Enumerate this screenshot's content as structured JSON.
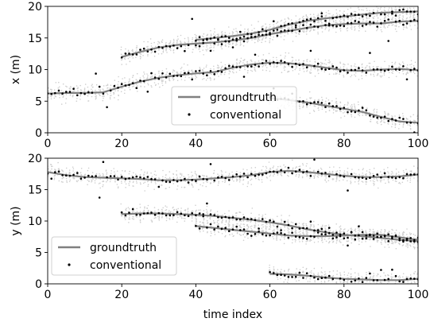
{
  "chart_data": [
    {
      "type": "line",
      "xlabel": "",
      "ylabel": "x (m)",
      "xlim": [
        0,
        100
      ],
      "ylim": [
        0,
        20
      ],
      "xticks": [
        0,
        20,
        40,
        60,
        80,
        100
      ],
      "yticks": [
        0,
        5,
        10,
        15,
        20
      ],
      "grid": false,
      "legend": {
        "placement": "lower-center",
        "entries": [
          "groundtruth",
          "conventional"
        ]
      },
      "series": [
        {
          "name": "groundtruth",
          "style": "line",
          "color": "#808080",
          "tracks": [
            {
              "x": [
                0,
                5,
                10,
                15,
                20,
                25,
                30,
                35,
                40,
                45,
                50,
                55,
                60,
                65,
                70,
                75,
                80,
                85,
                90,
                95,
                100
              ],
              "y": [
                6.2,
                6.3,
                6.3,
                6.4,
                7.3,
                8.1,
                8.7,
                9.1,
                9.4,
                9.6,
                10.3,
                10.8,
                11.1,
                11.0,
                10.7,
                10.3,
                9.9,
                9.8,
                10.0,
                10.1,
                9.9
              ]
            },
            {
              "x": [
                20,
                25,
                30,
                35,
                40,
                45,
                50,
                55,
                60,
                65,
                70,
                75,
                80,
                85,
                90,
                95,
                100
              ],
              "y": [
                12.0,
                12.8,
                13.5,
                13.9,
                14.1,
                14.3,
                14.6,
                15.0,
                15.6,
                16.1,
                16.6,
                17.0,
                17.2,
                17.3,
                17.3,
                17.6,
                17.7
              ]
            },
            {
              "x": [
                40,
                45,
                50,
                55,
                60,
                65,
                70,
                75,
                80,
                85,
                90,
                95,
                100
              ],
              "y": [
                14.7,
                15.0,
                15.3,
                15.7,
                16.3,
                17.1,
                17.7,
                18.1,
                18.4,
                18.7,
                19.0,
                19.1,
                19.2
              ]
            },
            {
              "x": [
                60,
                65,
                70,
                75,
                80,
                85,
                90,
                95,
                100
              ],
              "y": [
                5.5,
                5.2,
                4.8,
                4.3,
                3.8,
                3.3,
                2.5,
                1.8,
                1.6
              ]
            }
          ]
        },
        {
          "name": "conventional",
          "style": "points",
          "color": "#000000"
        }
      ]
    },
    {
      "type": "line",
      "xlabel": "time index",
      "ylabel": "y (m)",
      "xlim": [
        0,
        100
      ],
      "ylim": [
        0,
        20
      ],
      "xticks": [
        0,
        20,
        40,
        60,
        80,
        100
      ],
      "yticks": [
        0,
        5,
        10,
        15,
        20
      ],
      "grid": false,
      "legend": {
        "placement": "lower-left",
        "entries": [
          "groundtruth",
          "conventional"
        ]
      },
      "series": [
        {
          "name": "groundtruth",
          "style": "line",
          "color": "#808080",
          "tracks": [
            {
              "x": [
                0,
                5,
                10,
                15,
                20,
                25,
                30,
                35,
                40,
                45,
                50,
                55,
                60,
                65,
                70,
                75,
                80,
                85,
                90,
                95,
                100
              ],
              "y": [
                17.8,
                17.3,
                17.0,
                16.9,
                16.8,
                16.7,
                16.5,
                16.5,
                16.6,
                16.8,
                17.0,
                17.3,
                17.8,
                18.0,
                17.8,
                17.5,
                17.2,
                17.0,
                17.0,
                17.1,
                17.4
              ]
            },
            {
              "x": [
                20,
                25,
                30,
                35,
                40,
                45,
                50,
                55,
                60,
                65,
                70,
                75,
                80,
                85,
                90,
                95,
                100
              ],
              "y": [
                11.1,
                11.2,
                11.2,
                11.1,
                11.0,
                10.8,
                10.5,
                10.2,
                9.8,
                9.3,
                8.7,
                8.2,
                7.8,
                7.6,
                7.3,
                7.0,
                6.8
              ]
            },
            {
              "x": [
                40,
                45,
                50,
                55,
                60,
                65,
                70,
                75,
                80,
                85,
                90,
                95,
                100
              ],
              "y": [
                9.2,
                8.9,
                8.6,
                8.3,
                8.0,
                7.7,
                7.6,
                7.6,
                7.7,
                7.8,
                7.8,
                7.4,
                7.0
              ]
            },
            {
              "x": [
                60,
                65,
                70,
                75,
                80,
                85,
                90,
                95,
                100
              ],
              "y": [
                1.6,
                1.5,
                1.3,
                1.0,
                0.8,
                0.7,
                0.6,
                0.6,
                0.8
              ]
            }
          ]
        },
        {
          "name": "conventional",
          "style": "points",
          "color": "#000000"
        }
      ]
    }
  ]
}
